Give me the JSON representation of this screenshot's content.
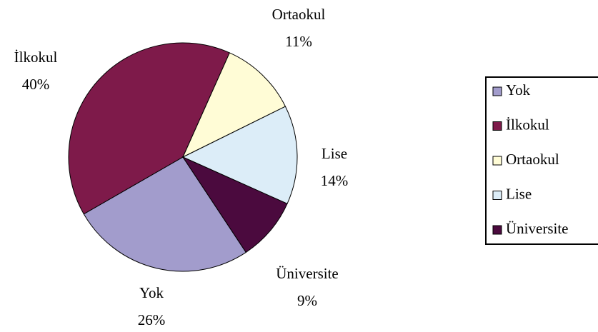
{
  "chart_data": {
    "type": "pie",
    "categories": [
      "Yok",
      "İlkokul",
      "Ortaokul",
      "Lise",
      "Üniversite"
    ],
    "values": [
      26,
      40,
      11,
      14,
      9
    ],
    "value_labels": [
      "26%",
      "40%",
      "11%",
      "14%",
      "9%"
    ],
    "colors": [
      "#a29ccc",
      "#7e1a4a",
      "#fffcd6",
      "#dcedf8",
      "#4b0a3e"
    ],
    "legend": "right"
  }
}
